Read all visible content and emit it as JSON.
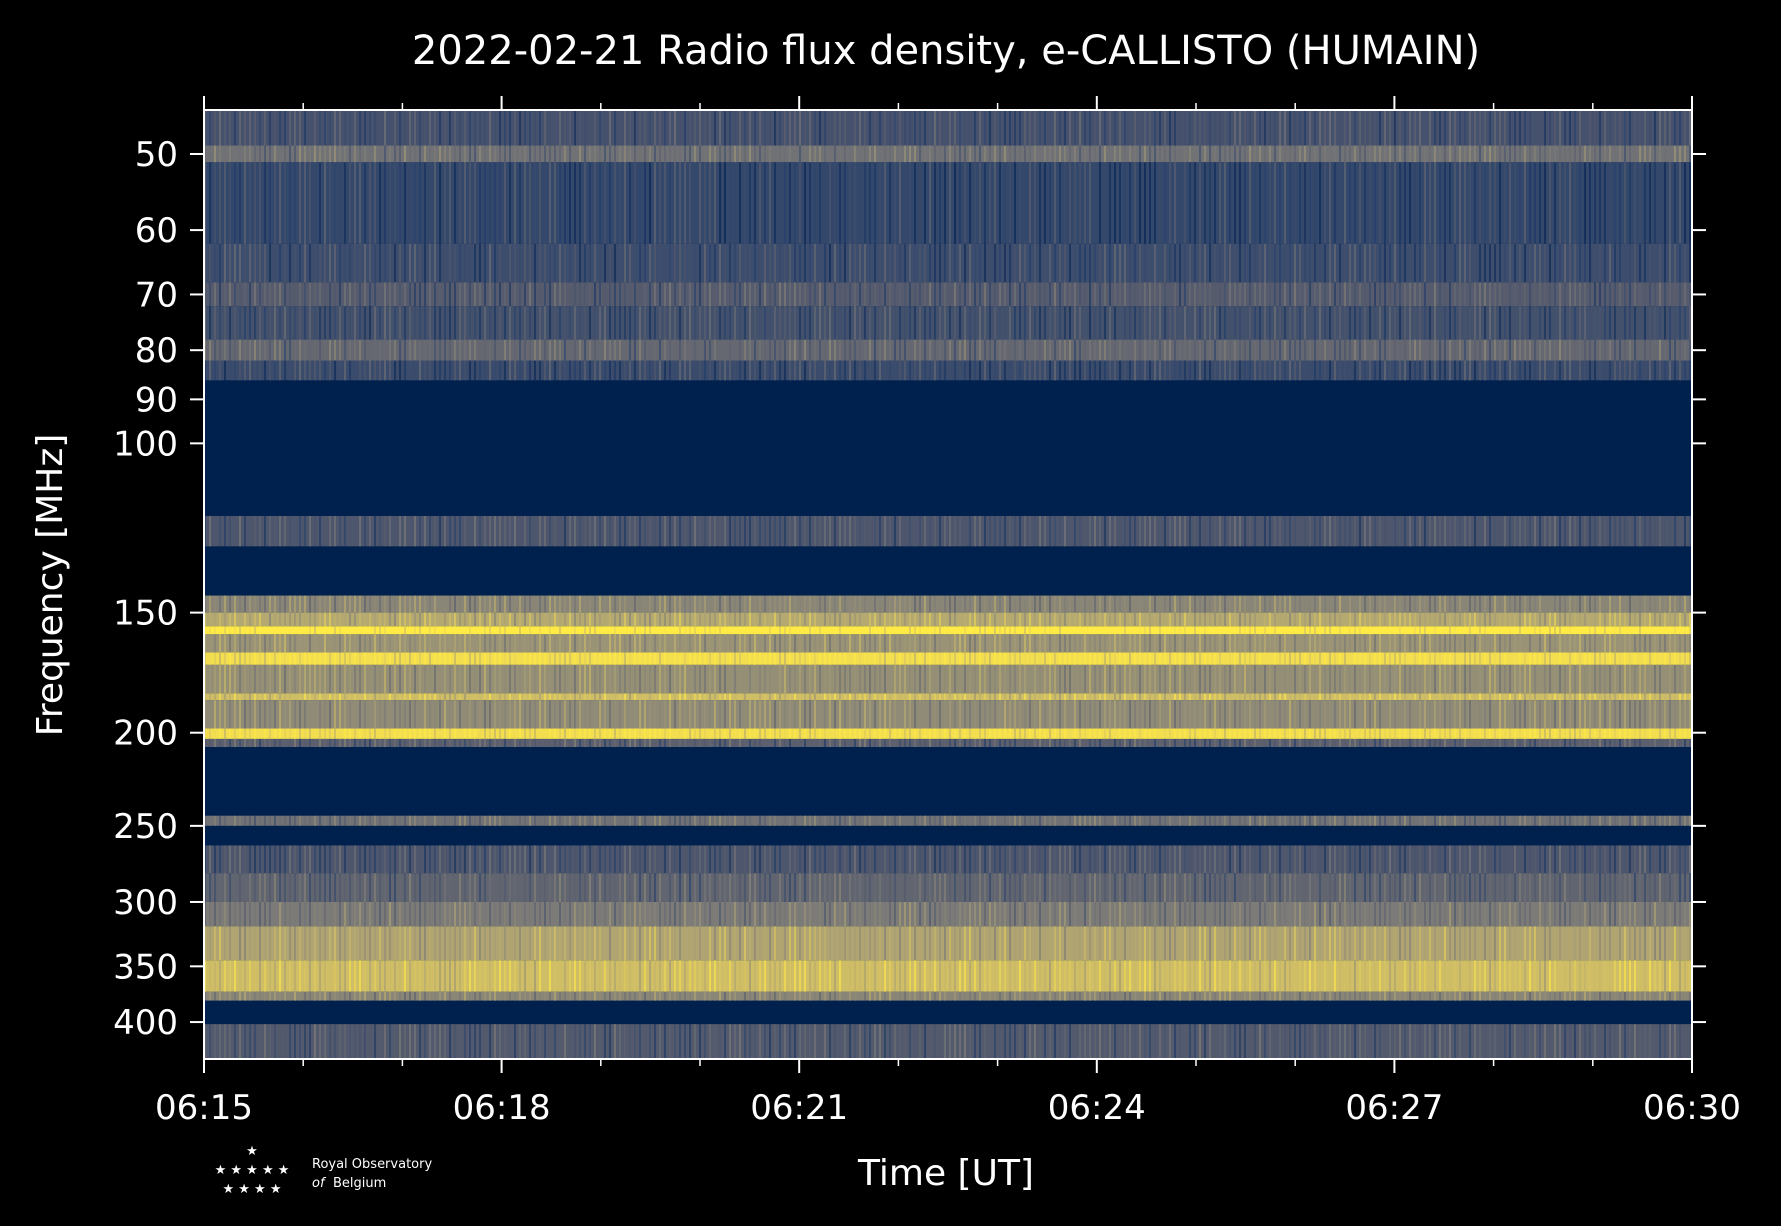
{
  "chart_data": {
    "type": "heatmap",
    "title": "2022-02-21 Radio flux density, e-CALLISTO (HUMAIN)",
    "xlabel": "Time [UT]",
    "ylabel": "Frequency [MHz]",
    "x_range": [
      "06:15",
      "06:30"
    ],
    "x_ticks": [
      "06:15",
      "06:18",
      "06:21",
      "06:24",
      "06:27",
      "06:30"
    ],
    "y_scale": "log",
    "y_range": [
      45,
      437
    ],
    "y_ticks": [
      50,
      60,
      70,
      80,
      90,
      100,
      150,
      200,
      250,
      300,
      350,
      400
    ],
    "y_tick_labels": [
      "50",
      "60",
      "70",
      "80",
      "90",
      "100",
      "150",
      "200",
      "250",
      "300",
      "350",
      "400"
    ],
    "colormap": [
      "#00204d",
      "#233e6c",
      "#575c6d",
      "#7c7b78",
      "#a69d75",
      "#d3c164",
      "#ffea46"
    ],
    "frequency_bands": [
      {
        "f_low": 45,
        "f_high": 49,
        "level": 0.28
      },
      {
        "f_low": 49,
        "f_high": 51,
        "level": 0.45
      },
      {
        "f_low": 51,
        "f_high": 62,
        "level": 0.22
      },
      {
        "f_low": 62,
        "f_high": 68,
        "level": 0.25
      },
      {
        "f_low": 68,
        "f_high": 72,
        "level": 0.33
      },
      {
        "f_low": 72,
        "f_high": 78,
        "level": 0.27
      },
      {
        "f_low": 78,
        "f_high": 82,
        "level": 0.4
      },
      {
        "f_low": 82,
        "f_high": 86,
        "level": 0.24
      },
      {
        "f_low": 86,
        "f_high": 119,
        "level": 0.0
      },
      {
        "f_low": 119,
        "f_high": 128,
        "level": 0.3
      },
      {
        "f_low": 128,
        "f_high": 144,
        "level": 0.0
      },
      {
        "f_low": 144,
        "f_high": 150,
        "level": 0.55
      },
      {
        "f_low": 150,
        "f_high": 155,
        "level": 0.72
      },
      {
        "f_low": 155,
        "f_high": 158,
        "level": 1.0
      },
      {
        "f_low": 158,
        "f_high": 165,
        "level": 0.62
      },
      {
        "f_low": 165,
        "f_high": 170,
        "level": 0.95
      },
      {
        "f_low": 170,
        "f_high": 182,
        "level": 0.6
      },
      {
        "f_low": 182,
        "f_high": 185,
        "level": 0.82
      },
      {
        "f_low": 185,
        "f_high": 198,
        "level": 0.58
      },
      {
        "f_low": 198,
        "f_high": 203,
        "level": 0.95
      },
      {
        "f_low": 203,
        "f_high": 207,
        "level": 0.35
      },
      {
        "f_low": 207,
        "f_high": 244,
        "level": 0.0
      },
      {
        "f_low": 244,
        "f_high": 250,
        "level": 0.45
      },
      {
        "f_low": 250,
        "f_high": 262,
        "level": 0.0
      },
      {
        "f_low": 262,
        "f_high": 280,
        "level": 0.3
      },
      {
        "f_low": 280,
        "f_high": 300,
        "level": 0.38
      },
      {
        "f_low": 300,
        "f_high": 318,
        "level": 0.5
      },
      {
        "f_low": 318,
        "f_high": 345,
        "level": 0.7
      },
      {
        "f_low": 345,
        "f_high": 372,
        "level": 0.82
      },
      {
        "f_low": 372,
        "f_high": 380,
        "level": 0.55
      },
      {
        "f_low": 380,
        "f_high": 402,
        "level": 0.0
      },
      {
        "f_low": 402,
        "f_high": 437,
        "level": 0.32
      }
    ],
    "grid": false,
    "legend": "none"
  },
  "logo": {
    "line1": "Royal Observatory",
    "line2_prefix": "of",
    "line2": "Belgium"
  }
}
